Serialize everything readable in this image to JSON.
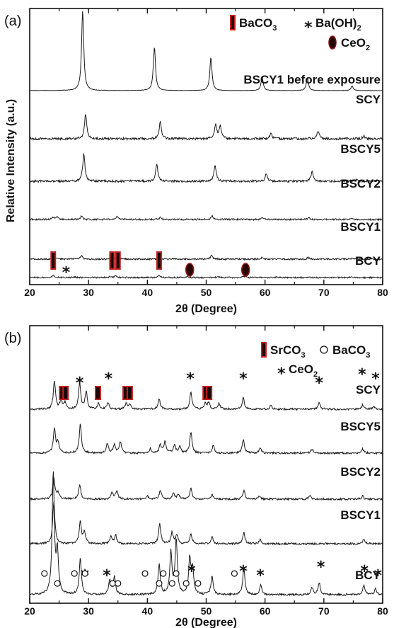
{
  "chart_data": [
    {
      "panel": "(a)",
      "type": "line",
      "xlabel": "2θ (Degree)",
      "ylabel": "Relative Intensity (a.u.)",
      "xlim": [
        20,
        80
      ],
      "xticks": [
        20,
        30,
        40,
        50,
        60,
        70,
        80
      ],
      "legend": [
        {
          "symbol": "bar",
          "label": "BaCO",
          "sub": "3",
          "color": "#c81e1e"
        },
        {
          "symbol": "star",
          "label": "Ba(OH)",
          "sub": "2"
        },
        {
          "symbol": "ellipse",
          "label": "CeO",
          "sub": "2",
          "color": "#8b0f0f"
        }
      ],
      "series": [
        {
          "name": "BSCY1 before exposure",
          "peaks": [
            [
              29.0,
              1.0
            ],
            [
              41.2,
              0.55
            ],
            [
              50.8,
              0.42
            ],
            [
              59.5,
              0.17
            ],
            [
              67.2,
              0.16
            ],
            [
              74.8,
              0.06
            ]
          ]
        },
        {
          "name": "SCY",
          "peaks": [
            [
              29.5,
              0.55
            ],
            [
              42.2,
              0.38
            ],
            [
              51.6,
              0.32
            ],
            [
              52.4,
              0.28
            ],
            [
              61.0,
              0.12
            ],
            [
              69.0,
              0.18
            ],
            [
              76.8,
              0.06
            ]
          ]
        },
        {
          "name": "BSCY5",
          "peaks": [
            [
              29.2,
              0.75
            ],
            [
              41.6,
              0.46
            ],
            [
              51.5,
              0.45
            ],
            [
              60.2,
              0.2
            ],
            [
              68.0,
              0.26
            ],
            [
              75.5,
              0.05
            ]
          ]
        },
        {
          "name": "BSCY2",
          "peaks": [
            [
              24.0,
              0.1
            ],
            [
              24.6,
              0.12
            ],
            [
              28.8,
              0.14
            ],
            [
              34.9,
              0.14
            ],
            [
              42.2,
              0.09
            ],
            [
              51.0,
              0.14
            ],
            [
              59.6,
              0.08
            ],
            [
              67.4,
              0.08
            ],
            [
              74.8,
              0.05
            ]
          ]
        },
        {
          "name": "BSCY1",
          "peaks": [
            [
              24.0,
              0.1
            ],
            [
              28.8,
              0.16
            ],
            [
              34.3,
              0.07
            ],
            [
              35.0,
              0.08
            ],
            [
              42.0,
              0.06
            ],
            [
              50.9,
              0.16
            ],
            [
              59.5,
              0.08
            ],
            [
              67.3,
              0.07
            ],
            [
              74.8,
              0.05
            ]
          ]
        },
        {
          "name": "BCY",
          "peaks": [
            [
              24.0,
              0.12
            ],
            [
              27.5,
              0.04
            ],
            [
              33.8,
              0.08
            ],
            [
              34.6,
              0.09
            ],
            [
              42.0,
              0.1
            ],
            [
              46.8,
              0.06
            ],
            [
              52.0,
              0.05
            ],
            [
              56.3,
              0.07
            ],
            [
              62.0,
              0.04
            ],
            [
              74.5,
              0.03
            ]
          ]
        }
      ],
      "markers": [
        {
          "kind": "bar",
          "x": 24.0
        },
        {
          "kind": "star",
          "x": 26.2
        },
        {
          "kind": "bar",
          "x": 34.0
        },
        {
          "kind": "bar",
          "x": 35.0
        },
        {
          "kind": "bar",
          "x": 42.0
        },
        {
          "kind": "ellipse",
          "x": 47.2
        },
        {
          "kind": "ellipse",
          "x": 56.7
        }
      ]
    },
    {
      "panel": "(b)",
      "type": "line",
      "xlabel": "2θ (Degree)",
      "ylabel": "",
      "xlim": [
        20,
        80
      ],
      "xticks": [
        20,
        30,
        40,
        50,
        60,
        70,
        80
      ],
      "legend": [
        {
          "symbol": "bar",
          "label": "SrCO",
          "sub": "3",
          "color": "#c81e1e"
        },
        {
          "symbol": "circle",
          "label": "BaCO",
          "sub": "3"
        },
        {
          "symbol": "star",
          "label": "CeO",
          "sub": "2"
        }
      ],
      "series": [
        {
          "name": "SCY",
          "peaks": [
            [
              24.2,
              0.5
            ],
            [
              25.3,
              0.15
            ],
            [
              26.0,
              0.12
            ],
            [
              28.5,
              0.45
            ],
            [
              29.6,
              0.3
            ],
            [
              31.7,
              0.1
            ],
            [
              33.3,
              0.12
            ],
            [
              36.4,
              0.1
            ],
            [
              37.0,
              0.08
            ],
            [
              42.0,
              0.18
            ],
            [
              47.4,
              0.3
            ],
            [
              49.8,
              0.1
            ],
            [
              50.4,
              0.12
            ],
            [
              52.2,
              0.1
            ],
            [
              56.3,
              0.2
            ],
            [
              61.0,
              0.07
            ],
            [
              69.2,
              0.12
            ],
            [
              76.6,
              0.08
            ],
            [
              78.5,
              0.05
            ]
          ]
        },
        {
          "name": "BSCY5",
          "peaks": [
            [
              24.2,
              0.45
            ],
            [
              24.8,
              0.2
            ],
            [
              28.6,
              0.55
            ],
            [
              33.2,
              0.18
            ],
            [
              34.4,
              0.15
            ],
            [
              35.4,
              0.22
            ],
            [
              40.5,
              0.08
            ],
            [
              42.2,
              0.15
            ],
            [
              43.0,
              0.22
            ],
            [
              44.6,
              0.15
            ],
            [
              45.5,
              0.12
            ],
            [
              47.4,
              0.4
            ],
            [
              51.2,
              0.15
            ],
            [
              56.3,
              0.25
            ],
            [
              59.2,
              0.1
            ],
            [
              68.0,
              0.08
            ],
            [
              76.6,
              0.08
            ]
          ]
        },
        {
          "name": "BSCY2",
          "peaks": [
            [
              24.1,
              0.5
            ],
            [
              24.8,
              0.15
            ],
            [
              28.5,
              0.35
            ],
            [
              34.0,
              0.15
            ],
            [
              34.8,
              0.2
            ],
            [
              40.0,
              0.08
            ],
            [
              42.2,
              0.2
            ],
            [
              44.4,
              0.15
            ],
            [
              45.3,
              0.12
            ],
            [
              47.4,
              0.25
            ],
            [
              51.0,
              0.1
            ],
            [
              56.4,
              0.2
            ],
            [
              59.0,
              0.08
            ],
            [
              67.6,
              0.08
            ],
            [
              76.6,
              0.07
            ]
          ]
        },
        {
          "name": "BSCY1",
          "peaks": [
            [
              24.1,
              0.75
            ],
            [
              28.6,
              0.4
            ],
            [
              29.3,
              0.2
            ],
            [
              33.8,
              0.12
            ],
            [
              34.6,
              0.15
            ],
            [
              42.1,
              0.35
            ],
            [
              44.2,
              0.2
            ],
            [
              45.0,
              0.15
            ],
            [
              47.4,
              0.18
            ],
            [
              51.0,
              0.12
            ],
            [
              56.4,
              0.2
            ],
            [
              59.2,
              0.08
            ],
            [
              76.8,
              0.08
            ]
          ]
        },
        {
          "name": "BCY",
          "peaks": [
            [
              24.0,
              1.0
            ],
            [
              24.7,
              0.35
            ],
            [
              28.6,
              0.3
            ],
            [
              33.6,
              0.12
            ],
            [
              34.4,
              0.15
            ],
            [
              42.0,
              0.25
            ],
            [
              44.0,
              0.35
            ],
            [
              44.9,
              0.45
            ],
            [
              47.2,
              0.3
            ],
            [
              47.7,
              0.2
            ],
            [
              51.0,
              0.15
            ],
            [
              56.4,
              0.22
            ],
            [
              59.3,
              0.08
            ],
            [
              68.0,
              0.06
            ],
            [
              69.2,
              0.1
            ],
            [
              76.8,
              0.08
            ],
            [
              78.8,
              0.05
            ]
          ]
        }
      ],
      "markers": [
        {
          "kind": "bar",
          "series": "SCY",
          "x": 25.5
        },
        {
          "kind": "bar",
          "series": "SCY",
          "x": 26.1
        },
        {
          "kind": "star",
          "series": "SCY",
          "x": 28.5
        },
        {
          "kind": "bar",
          "series": "SCY",
          "x": 31.6
        },
        {
          "kind": "star",
          "series": "SCY",
          "x": 33.4
        },
        {
          "kind": "bar",
          "series": "SCY",
          "x": 36.3
        },
        {
          "kind": "bar",
          "series": "SCY",
          "x": 37.0
        },
        {
          "kind": "star",
          "series": "SCY",
          "x": 47.3
        },
        {
          "kind": "bar",
          "series": "SCY",
          "x": 49.9
        },
        {
          "kind": "bar",
          "series": "SCY",
          "x": 50.5
        },
        {
          "kind": "star",
          "series": "SCY",
          "x": 56.3
        },
        {
          "kind": "star",
          "series": "SCY",
          "x": 69.2
        },
        {
          "kind": "star",
          "series": "SCY",
          "x": 76.5
        },
        {
          "kind": "star",
          "series": "SCY",
          "x": 78.8
        },
        {
          "kind": "circle",
          "series": "BCY",
          "x": 22.5
        },
        {
          "kind": "circle",
          "series": "BCY",
          "x": 24.7
        },
        {
          "kind": "circle",
          "series": "BCY",
          "x": 27.6
        },
        {
          "kind": "star",
          "series": "BCY",
          "x": 29.4
        },
        {
          "kind": "circle",
          "series": "BCY",
          "x": 29.4
        },
        {
          "kind": "circle",
          "series": "BCY",
          "x": 34.1
        },
        {
          "kind": "star",
          "series": "BCY",
          "x": 33.1
        },
        {
          "kind": "circle",
          "series": "BCY",
          "x": 35.0
        },
        {
          "kind": "circle",
          "series": "BCY",
          "x": 39.6
        },
        {
          "kind": "circle",
          "series": "BCY",
          "x": 42.0
        },
        {
          "kind": "circle",
          "series": "BCY",
          "x": 42.7
        },
        {
          "kind": "circle",
          "series": "BCY",
          "x": 44.2
        },
        {
          "kind": "circle",
          "series": "BCY",
          "x": 44.9
        },
        {
          "kind": "circle",
          "series": "BCY",
          "x": 46.6
        },
        {
          "kind": "star",
          "series": "BCY",
          "x": 47.5
        },
        {
          "kind": "circle",
          "series": "BCY",
          "x": 48.6
        },
        {
          "kind": "circle",
          "series": "BCY",
          "x": 54.8
        },
        {
          "kind": "star",
          "series": "BCY",
          "x": 56.3
        },
        {
          "kind": "star",
          "series": "BCY",
          "x": 59.2
        },
        {
          "kind": "star",
          "series": "BCY",
          "x": 69.5
        },
        {
          "kind": "star",
          "series": "BCY",
          "x": 76.9
        },
        {
          "kind": "star",
          "series": "BCY",
          "x": 79.2
        }
      ]
    }
  ]
}
